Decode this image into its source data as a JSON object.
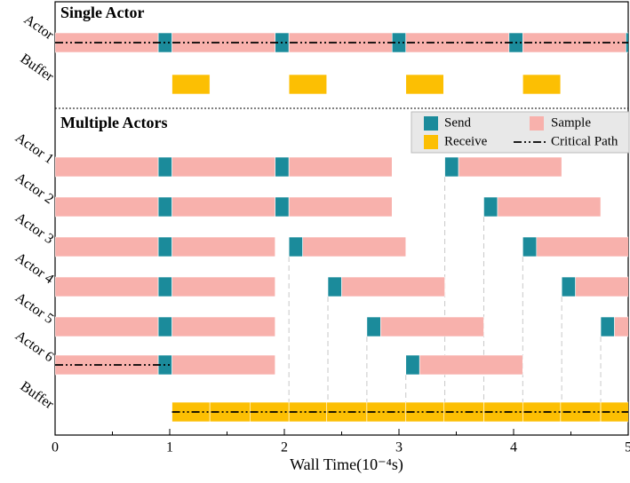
{
  "chart_data": {
    "type": "gantt",
    "xlim": [
      0,
      5
    ],
    "xticks": [
      0,
      1,
      2,
      3,
      4,
      5
    ],
    "xminor": [
      0.5,
      1.5,
      2.5,
      3.5,
      4.5
    ],
    "x_label": "Wall Time(10⁻⁴s)",
    "legend": [
      {
        "name": "Send",
        "color": "#1b8b9b"
      },
      {
        "name": "Sample",
        "color": "#f8b1ac"
      },
      {
        "name": "Receive",
        "color": "#fcbf03"
      },
      {
        "name": "Critical Path",
        "color": "#000000"
      }
    ],
    "panels": [
      {
        "title": "Single Actor",
        "rows": [
          {
            "label": "Actor",
            "critical_path": [
              0,
              5
            ],
            "segments": [
              {
                "kind": "Sample",
                "start": 0,
                "end": 0.9
              },
              {
                "kind": "Send",
                "start": 0.9,
                "end": 1.02
              },
              {
                "kind": "Sample",
                "start": 1.02,
                "end": 1.92
              },
              {
                "kind": "Send",
                "start": 1.92,
                "end": 2.04
              },
              {
                "kind": "Sample",
                "start": 2.04,
                "end": 2.94
              },
              {
                "kind": "Send",
                "start": 2.94,
                "end": 3.06
              },
              {
                "kind": "Sample",
                "start": 3.06,
                "end": 3.96
              },
              {
                "kind": "Send",
                "start": 3.96,
                "end": 4.08
              },
              {
                "kind": "Sample",
                "start": 4.08,
                "end": 4.98
              },
              {
                "kind": "Send",
                "start": 4.98,
                "end": 5.1
              }
            ]
          },
          {
            "label": "Buffer",
            "segments": [
              {
                "kind": "Receive",
                "start": 1.02,
                "end": 1.35
              },
              {
                "kind": "Receive",
                "start": 2.04,
                "end": 2.37
              },
              {
                "kind": "Receive",
                "start": 3.06,
                "end": 3.39
              },
              {
                "kind": "Receive",
                "start": 4.08,
                "end": 4.41
              }
            ]
          }
        ]
      },
      {
        "title": "Multiple Actors",
        "rows": [
          {
            "label": "Actor 1",
            "segments": [
              {
                "kind": "Sample",
                "start": 0,
                "end": 0.9
              },
              {
                "kind": "Send",
                "start": 0.9,
                "end": 1.02
              },
              {
                "kind": "Sample",
                "start": 1.02,
                "end": 1.92
              },
              {
                "kind": "Send",
                "start": 1.92,
                "end": 2.04
              },
              {
                "kind": "Sample",
                "start": 2.04,
                "end": 2.94
              },
              {
                "kind": "Send",
                "start": 3.4,
                "end": 3.52
              },
              {
                "kind": "Sample",
                "start": 3.52,
                "end": 4.42
              }
            ]
          },
          {
            "label": "Actor 2",
            "segments": [
              {
                "kind": "Sample",
                "start": 0,
                "end": 0.9
              },
              {
                "kind": "Send",
                "start": 0.9,
                "end": 1.02
              },
              {
                "kind": "Sample",
                "start": 1.02,
                "end": 1.92
              },
              {
                "kind": "Send",
                "start": 1.92,
                "end": 2.04
              },
              {
                "kind": "Sample",
                "start": 2.04,
                "end": 2.94
              },
              {
                "kind": "Send",
                "start": 3.74,
                "end": 3.86
              },
              {
                "kind": "Sample",
                "start": 3.86,
                "end": 4.76
              }
            ]
          },
          {
            "label": "Actor 3",
            "segments": [
              {
                "kind": "Sample",
                "start": 0,
                "end": 0.9
              },
              {
                "kind": "Send",
                "start": 0.9,
                "end": 1.02
              },
              {
                "kind": "Sample",
                "start": 1.02,
                "end": 1.92
              },
              {
                "kind": "Send",
                "start": 2.04,
                "end": 2.16
              },
              {
                "kind": "Sample",
                "start": 2.16,
                "end": 3.06
              },
              {
                "kind": "Send",
                "start": 4.08,
                "end": 4.2
              },
              {
                "kind": "Sample",
                "start": 4.2,
                "end": 5.1
              }
            ]
          },
          {
            "label": "Actor 4",
            "segments": [
              {
                "kind": "Sample",
                "start": 0,
                "end": 0.9
              },
              {
                "kind": "Send",
                "start": 0.9,
                "end": 1.02
              },
              {
                "kind": "Sample",
                "start": 1.02,
                "end": 1.92
              },
              {
                "kind": "Send",
                "start": 2.38,
                "end": 2.5
              },
              {
                "kind": "Sample",
                "start": 2.5,
                "end": 3.4
              },
              {
                "kind": "Send",
                "start": 4.42,
                "end": 4.54
              },
              {
                "kind": "Sample",
                "start": 4.54,
                "end": 5.44
              }
            ]
          },
          {
            "label": "Actor 5",
            "segments": [
              {
                "kind": "Sample",
                "start": 0,
                "end": 0.9
              },
              {
                "kind": "Send",
                "start": 0.9,
                "end": 1.02
              },
              {
                "kind": "Sample",
                "start": 1.02,
                "end": 1.92
              },
              {
                "kind": "Send",
                "start": 2.72,
                "end": 2.84
              },
              {
                "kind": "Sample",
                "start": 2.84,
                "end": 3.74
              },
              {
                "kind": "Send",
                "start": 4.76,
                "end": 4.88
              },
              {
                "kind": "Sample",
                "start": 4.88,
                "end": 5.78
              }
            ]
          },
          {
            "label": "Actor 6",
            "critical_path": [
              0,
              1.02
            ],
            "segments": [
              {
                "kind": "Sample",
                "start": 0,
                "end": 0.9
              },
              {
                "kind": "Send",
                "start": 0.9,
                "end": 1.02
              },
              {
                "kind": "Sample",
                "start": 1.02,
                "end": 1.92
              },
              {
                "kind": "Send",
                "start": 3.06,
                "end": 3.18
              },
              {
                "kind": "Sample",
                "start": 3.18,
                "end": 4.08
              }
            ]
          },
          {
            "label": "Buffer",
            "critical_path": [
              1.02,
              5
            ],
            "segments": [
              {
                "kind": "Receive",
                "start": 1.02,
                "end": 1.35
              },
              {
                "kind": "Receive",
                "start": 1.35,
                "end": 1.7
              },
              {
                "kind": "Receive",
                "start": 1.7,
                "end": 2.04
              },
              {
                "kind": "Receive",
                "start": 2.04,
                "end": 2.37
              },
              {
                "kind": "Receive",
                "start": 2.37,
                "end": 2.72
              },
              {
                "kind": "Receive",
                "start": 2.72,
                "end": 3.06
              },
              {
                "kind": "Receive",
                "start": 3.06,
                "end": 3.39
              },
              {
                "kind": "Receive",
                "start": 3.39,
                "end": 3.74
              },
              {
                "kind": "Receive",
                "start": 3.74,
                "end": 4.08
              },
              {
                "kind": "Receive",
                "start": 4.08,
                "end": 4.41
              },
              {
                "kind": "Receive",
                "start": 4.41,
                "end": 4.76
              },
              {
                "kind": "Receive",
                "start": 4.76,
                "end": 5.1
              }
            ]
          }
        ]
      }
    ]
  }
}
